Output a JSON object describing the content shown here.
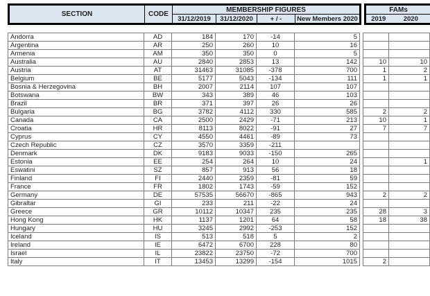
{
  "colors": {
    "header_bg": "#dce6f1",
    "border_thick": "#000000",
    "border_thin": "#7b7b7b",
    "text": "#1f1f1f"
  },
  "table": {
    "headers": {
      "section": "SECTION",
      "code": "CODE",
      "membership": "MEMBERSHIP FIGURES",
      "y2019": "31/12/2019",
      "y2020": "31/12/2020",
      "plus_minus": "+ / -",
      "new_members": "New Members 2020",
      "fams": "FAMs",
      "fams_2019": "2019",
      "fams_2020": "2020"
    },
    "columns": [
      "section",
      "code",
      "members_31_12_2019",
      "members_31_12_2020",
      "plus_minus",
      "new_members_2020",
      "fams_2019",
      "fams_2020"
    ],
    "rows": [
      [
        "Andorra",
        "AD",
        "184",
        "170",
        "-14",
        "5",
        "",
        ""
      ],
      [
        "Argentina",
        "AR",
        "250",
        "260",
        "10",
        "16",
        "",
        ""
      ],
      [
        "Armenia",
        "AM",
        "350",
        "350",
        "0",
        "5",
        "",
        ""
      ],
      [
        "Australia",
        "AU",
        "2840",
        "2853",
        "13",
        "142",
        "10",
        "10"
      ],
      [
        "Austria",
        "AT",
        "31463",
        "31085",
        "-378",
        "700",
        "1",
        "2"
      ],
      [
        "Belgium",
        "BE",
        "5177",
        "5043",
        "-134",
        "111",
        "1",
        "1"
      ],
      [
        "Bosnia & Herzegovina",
        "BH",
        "2007",
        "2114",
        "107",
        "107",
        "",
        ""
      ],
      [
        "Botswana",
        "BW",
        "343",
        "389",
        "46",
        "103",
        "",
        ""
      ],
      [
        "Brazil",
        "BR",
        "371",
        "397",
        "26",
        "26",
        "",
        ""
      ],
      [
        "Bulgaria",
        "BG",
        "3782",
        "4112",
        "330",
        "585",
        "2",
        "2"
      ],
      [
        "Canada",
        "CA",
        "2500",
        "2429",
        "-71",
        "213",
        "10",
        "1"
      ],
      [
        "Croatia",
        "HR",
        "8113",
        "8022",
        "-91",
        "27",
        "7",
        "7"
      ],
      [
        "Cyprus",
        "CY",
        "4550",
        "4461",
        "-89",
        "73",
        "",
        ""
      ],
      [
        "Czech Republic",
        "CZ",
        "3570",
        "3359",
        "-211",
        "",
        "",
        ""
      ],
      [
        "Denmark",
        "DK",
        "9183",
        "9033",
        "-150",
        "265",
        "",
        ""
      ],
      [
        "Estonia",
        "EE",
        "254",
        "264",
        "10",
        "24",
        "",
        "1"
      ],
      [
        "Eswatini",
        "SZ",
        "857",
        "913",
        "56",
        "18",
        "",
        ""
      ],
      [
        "Finland",
        "FI",
        "2440",
        "2359",
        "-81",
        "59",
        "",
        ""
      ],
      [
        "France",
        "FR",
        "1802",
        "1743",
        "-59",
        "152",
        "",
        ""
      ],
      [
        "Germany",
        "DE",
        "57535",
        "56670",
        "-865",
        "943",
        "2",
        "2"
      ],
      [
        "Gibraltar",
        "GI",
        "233",
        "211",
        "-22",
        "24",
        "",
        ""
      ],
      [
        "Greece",
        "GR",
        "10112",
        "10347",
        "235",
        "235",
        "28",
        "3"
      ],
      [
        "Hong Kong",
        "HK",
        "1137",
        "1201",
        "64",
        "58",
        "18",
        "38"
      ],
      [
        "Hungary",
        "HU",
        "3245",
        "2992",
        "-253",
        "152",
        "",
        ""
      ],
      [
        "Iceland",
        "IS",
        "513",
        "518",
        "5",
        "2",
        "",
        ""
      ],
      [
        "Ireland",
        "IE",
        "6472",
        "6700",
        "228",
        "80",
        "",
        ""
      ],
      [
        "Israel",
        "IL",
        "23822",
        "23750",
        "-72",
        "700",
        "",
        ""
      ],
      [
        "Italy",
        "IT",
        "13453",
        "13299",
        "-154",
        "1015",
        "2",
        ""
      ]
    ]
  }
}
